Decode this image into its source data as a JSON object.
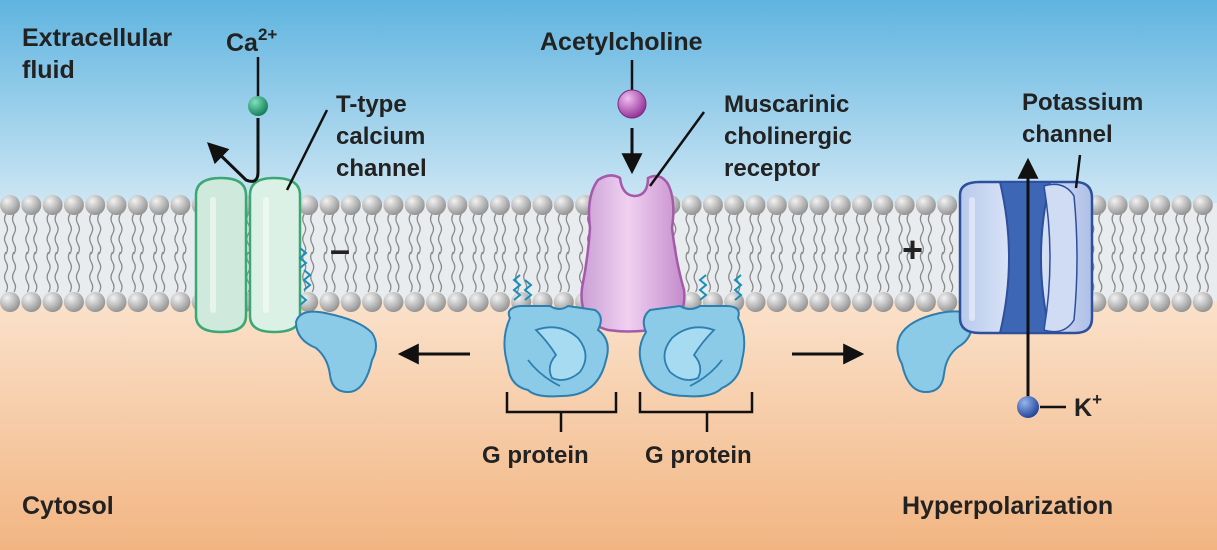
{
  "labels": {
    "extracellular_line1": "Extracellular",
    "extracellular_line2": "fluid",
    "calcium_ion_base": "Ca",
    "calcium_ion_charge": "2+",
    "ttype_line1": "T-type",
    "ttype_line2": "calcium",
    "ttype_line3": "channel",
    "acetylcholine": "Acetylcholine",
    "muscarinic_line1": "Muscarinic",
    "muscarinic_line2": "cholinergic",
    "muscarinic_line3": "receptor",
    "potassium_line1": "Potassium",
    "potassium_line2": "channel",
    "g_protein_left": "G protein",
    "g_protein_right": "G protein",
    "potassium_ion_base": "K",
    "potassium_ion_charge": "+",
    "cytosol": "Cytosol",
    "hyperpolarization": "Hyperpolarization",
    "minus_sign": "–",
    "plus_sign": "+"
  },
  "colors": {
    "sky_top": "#5fb4e0",
    "extracellular_bottom": "#f4f8fb",
    "cytosol_top": "#fbe6d2",
    "cytosol_bottom": "#f2b582",
    "lipid_head": "#b3b3b3",
    "tail": "#8a8a8a",
    "calcium_channel": "#cfeadc",
    "calcium_stroke": "#3aa774",
    "calcium_ion": "#1f9a6e",
    "receptor": "#d9a6dc",
    "receptor_stroke": "#a45aa9",
    "acetylcholine": "#b14cb4",
    "g_protein": "#8ccbe8",
    "g_protein_stroke": "#2d7fb0",
    "potassium_channel": "#c3d3ef",
    "potassium_dark": "#3d66b5",
    "potassium_stroke": "#2e4f9c",
    "potassium_ion": "#2b54b8",
    "lipid_anchor": "#1b8fb5",
    "text": "#222222"
  }
}
